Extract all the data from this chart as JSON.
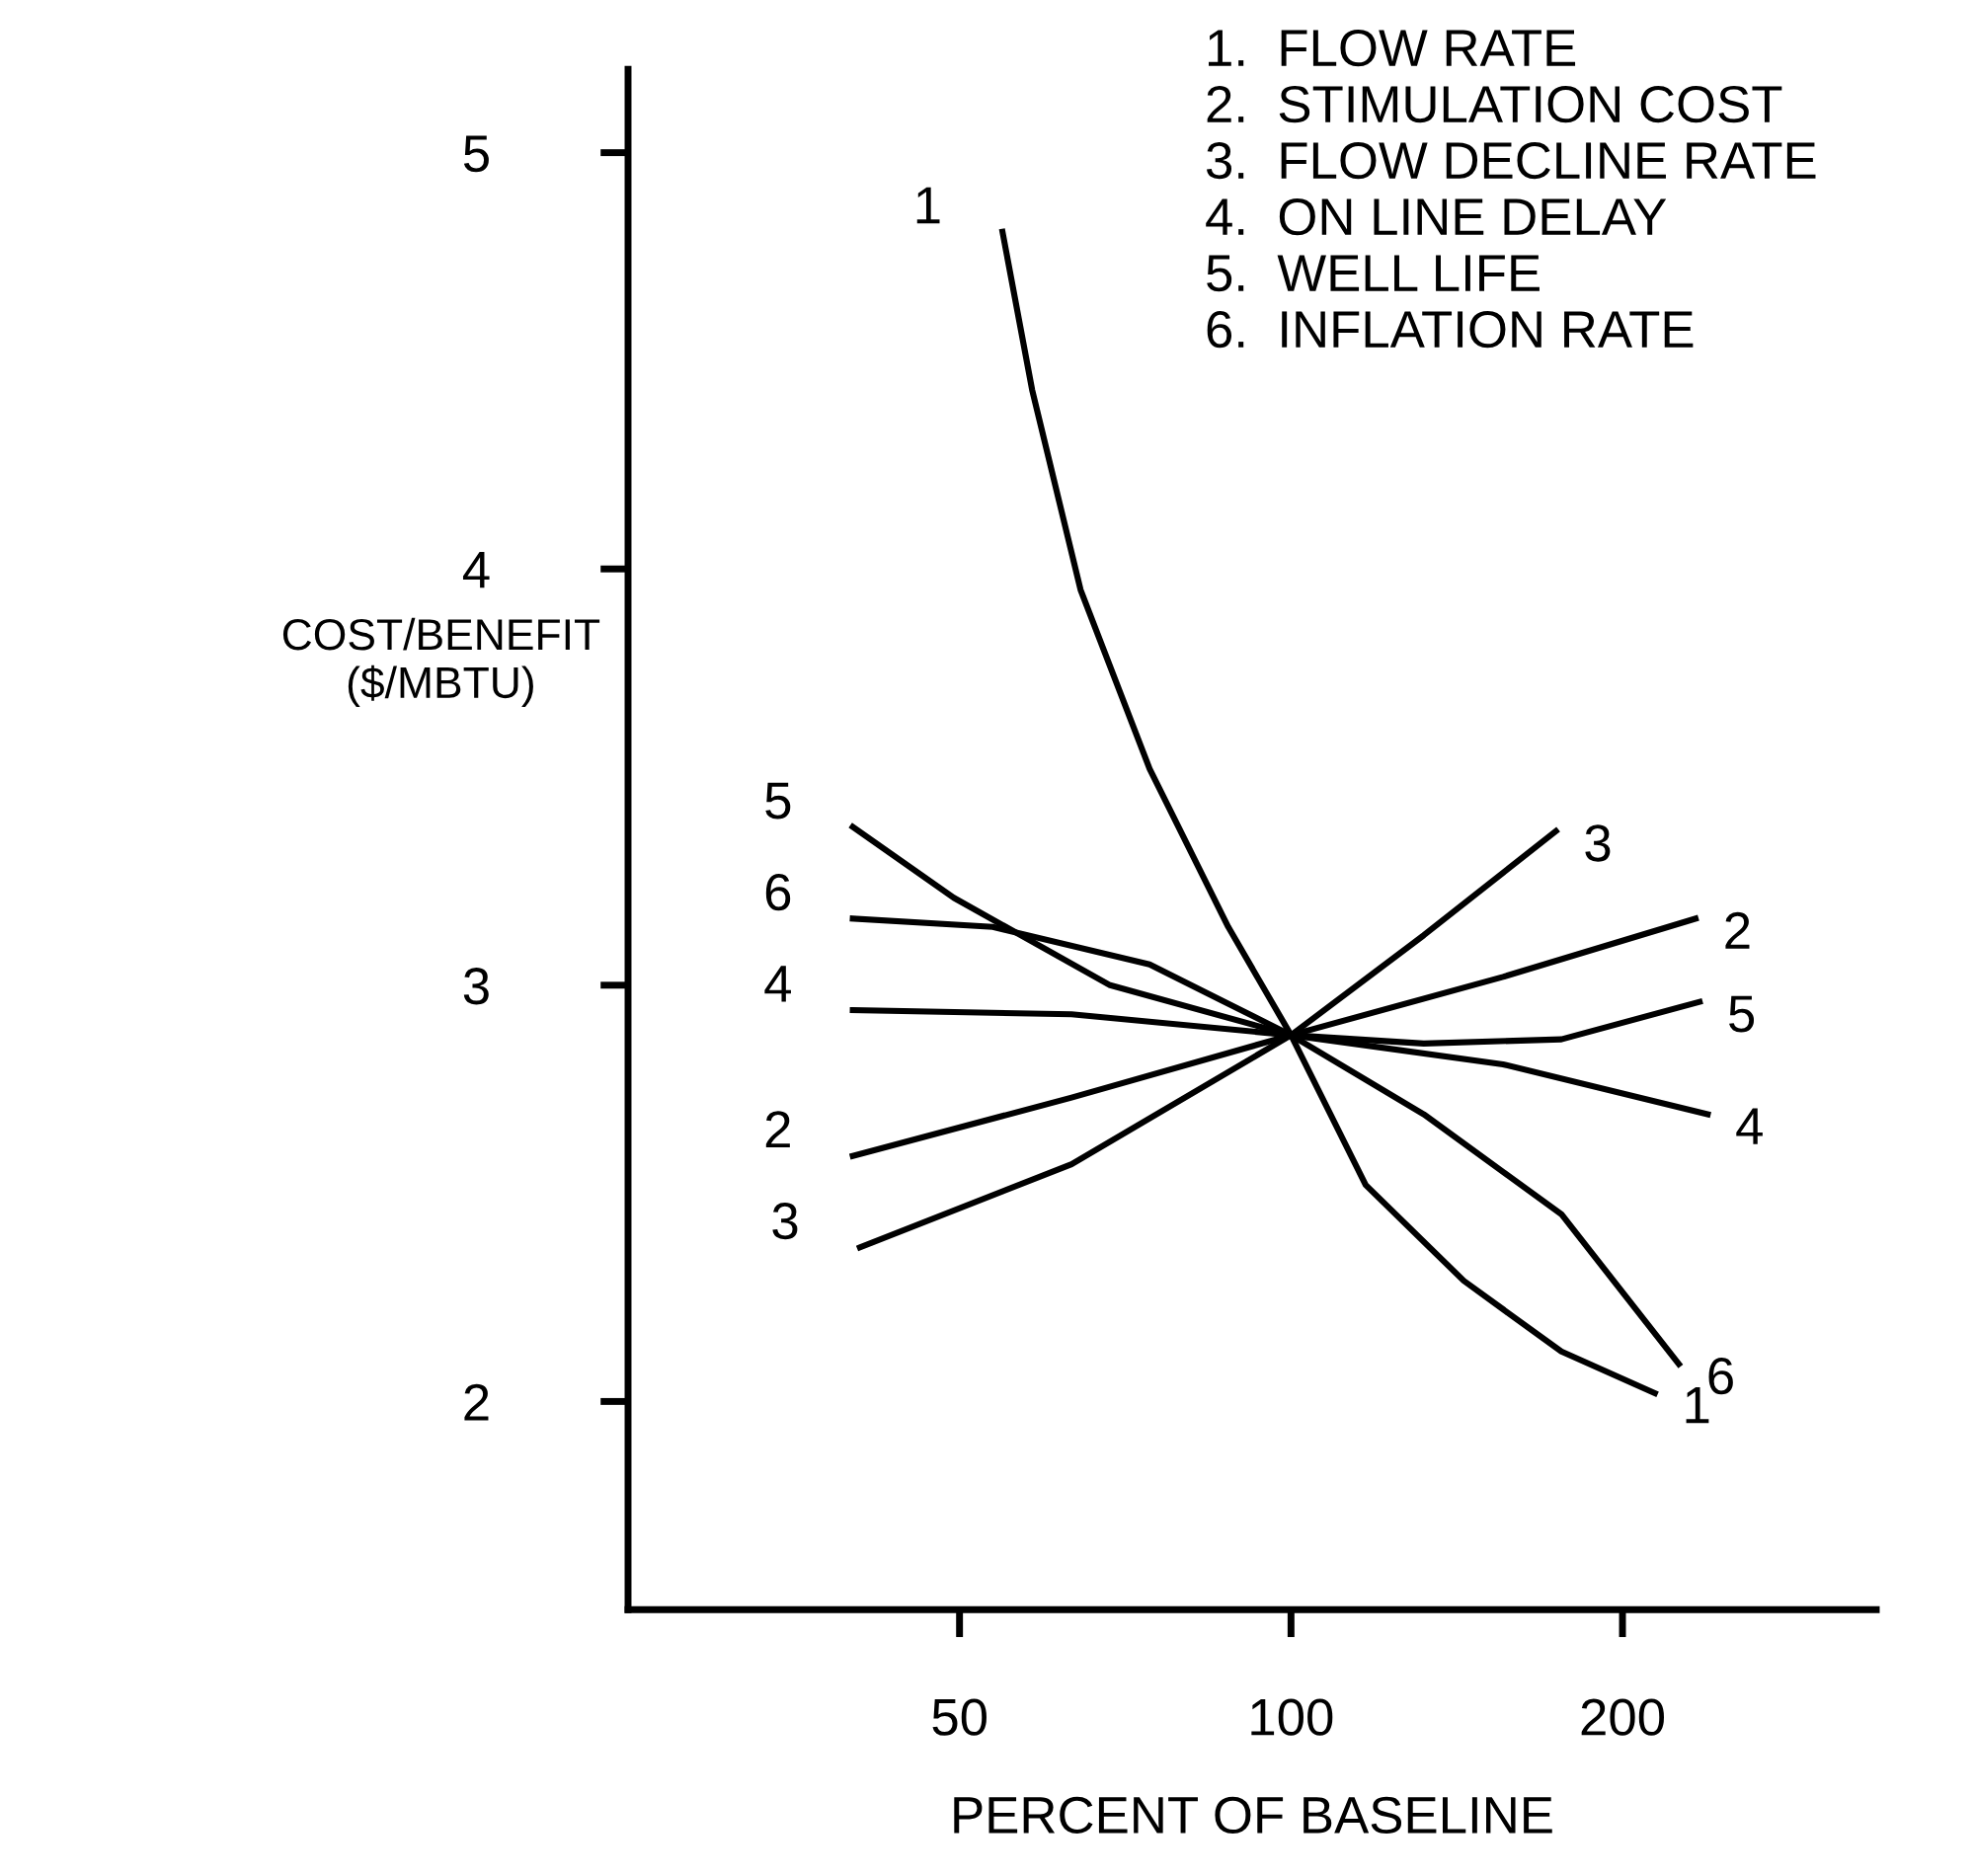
{
  "chart_data": {
    "type": "line",
    "xlabel": "PERCENT OF BASELINE",
    "ylabel": "COST/BENEFIT\n($/MBTU)",
    "log": "x",
    "xlim": [
      25,
      340
    ],
    "xticks": [
      50,
      100,
      200
    ],
    "ylim": [
      1.5,
      5.2
    ],
    "yticks": [
      2,
      3,
      4,
      5
    ],
    "grid": false,
    "marker": "none",
    "line_style": "solid",
    "annotations": [
      "1.  FLOW RATE",
      "2.  STIMULATION COST",
      "3.  FLOW DECLINE RATE",
      "4.  ON LINE DELAY",
      "5.  WELL LIFE",
      "6.  INFLATION RATE"
    ],
    "series": [
      {
        "name": "1",
        "color": "#000000",
        "x": [
          54.7,
          58.2,
          64.4,
          74.4,
          87.7,
          100,
          116.9,
          143.5,
          176,
          214
        ],
        "values": [
          4.81,
          4.43,
          3.95,
          3.52,
          3.14,
          2.88,
          2.52,
          2.29,
          2.12,
          2.02
        ]
      },
      {
        "name": "2",
        "color": "#000000",
        "x": [
          40,
          63.2,
          100,
          155.8,
          233
        ],
        "values": [
          2.59,
          2.73,
          2.88,
          3.02,
          3.16
        ]
      },
      {
        "name": "3",
        "color": "#000000",
        "x": [
          40.6,
          63.2,
          100,
          132,
          174
        ],
        "values": [
          2.37,
          2.57,
          2.88,
          3.12,
          3.37
        ]
      },
      {
        "name": "4",
        "color": "#000000",
        "x": [
          40,
          63.2,
          100,
          155.8,
          239
        ],
        "values": [
          2.94,
          2.93,
          2.88,
          2.81,
          2.69
        ]
      },
      {
        "name": "5",
        "color": "#000000",
        "x": [
          40,
          49.4,
          68.5,
          100,
          132,
          176,
          235
        ],
        "values": [
          3.38,
          3.21,
          3.0,
          2.88,
          2.86,
          2.87,
          2.96
        ]
      },
      {
        "name": "6",
        "color": "#000000",
        "x": [
          40,
          53.6,
          74.4,
          100,
          132,
          176,
          225
        ],
        "values": [
          3.16,
          3.14,
          3.05,
          2.88,
          2.69,
          2.45,
          2.09
        ]
      }
    ]
  }
}
